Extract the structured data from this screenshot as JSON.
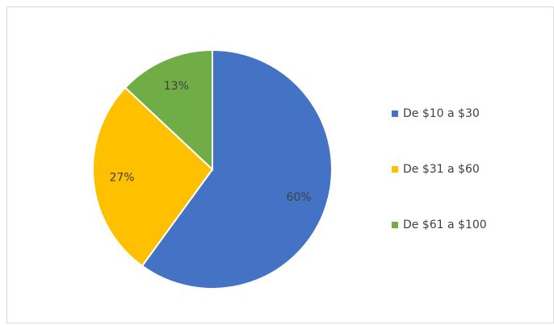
{
  "chart_data": {
    "type": "pie",
    "categories": [
      "De $10 a $30",
      "De $31 a $60",
      "De $61 a $100"
    ],
    "values": [
      60,
      27,
      13
    ],
    "value_labels": [
      "60%",
      "27%",
      "13%"
    ],
    "colors": [
      "#4472c4",
      "#ffc000",
      "#70ad47"
    ],
    "legend": "right"
  }
}
